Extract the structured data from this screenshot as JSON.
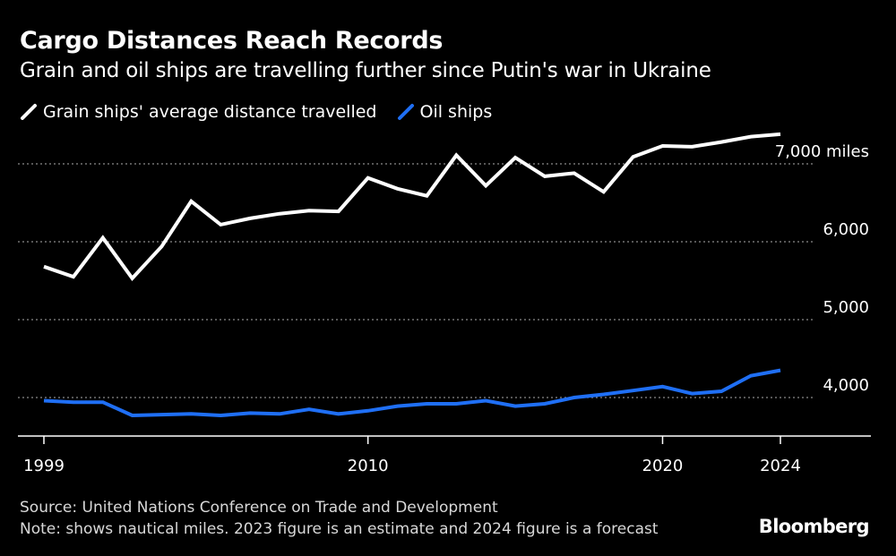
{
  "title": "Cargo Distances Reach Records",
  "subtitle": "Grain and oil ships are travelling further since Putin's war in Ukraine",
  "legend": {
    "grain": "Grain ships' average distance travelled",
    "oil": "Oil ships"
  },
  "source": "Source: United Nations Conference on Trade and Development",
  "note": "Note: shows nautical miles. 2023 figure is an estimate and 2024 figure is a forecast",
  "brand": "Bloomberg",
  "colors": {
    "grain": "#ffffff",
    "oil": "#1f6ff5",
    "grid": "#8a8a8a",
    "background": "#000000"
  },
  "chart_data": {
    "type": "line",
    "title": "Cargo Distances Reach Records",
    "subtitle": "Grain and oil ships are travelling further since Putin's war in Ukraine",
    "xlabel": "",
    "ylabel": "",
    "x": [
      1999,
      2000,
      2001,
      2002,
      2003,
      2004,
      2005,
      2006,
      2007,
      2008,
      2009,
      2010,
      2011,
      2012,
      2013,
      2014,
      2015,
      2016,
      2017,
      2018,
      2019,
      2020,
      2021,
      2022,
      2023,
      2024
    ],
    "series": [
      {
        "name": "Grain ships' average distance travelled",
        "values": [
          5680,
          5550,
          6050,
          5530,
          5940,
          6520,
          6220,
          6300,
          6360,
          6400,
          6390,
          6820,
          6680,
          6590,
          7110,
          6720,
          7080,
          6840,
          6880,
          6640,
          7090,
          7230,
          7220,
          7280,
          7350,
          7380
        ]
      },
      {
        "name": "Oil ships",
        "values": [
          3960,
          3940,
          3940,
          3770,
          3780,
          3790,
          3770,
          3800,
          3790,
          3850,
          3790,
          3830,
          3890,
          3920,
          3920,
          3960,
          3890,
          3920,
          4000,
          4040,
          4090,
          4140,
          4050,
          4080,
          4280,
          4350
        ]
      }
    ],
    "xticks": [
      1999,
      2010,
      2020,
      2024
    ],
    "xtick_labels": [
      "1999",
      "2010",
      "2020",
      "2024"
    ],
    "yticks": [
      4000,
      5000,
      6000,
      7000
    ],
    "ytick_labels": [
      "4,000",
      "5,000",
      "6,000",
      "7,000"
    ],
    "ytick_unit": "miles",
    "xlim": [
      1999,
      2024
    ],
    "ylim": [
      3500,
      7500
    ],
    "grid": true,
    "legend_position": "top-left"
  }
}
